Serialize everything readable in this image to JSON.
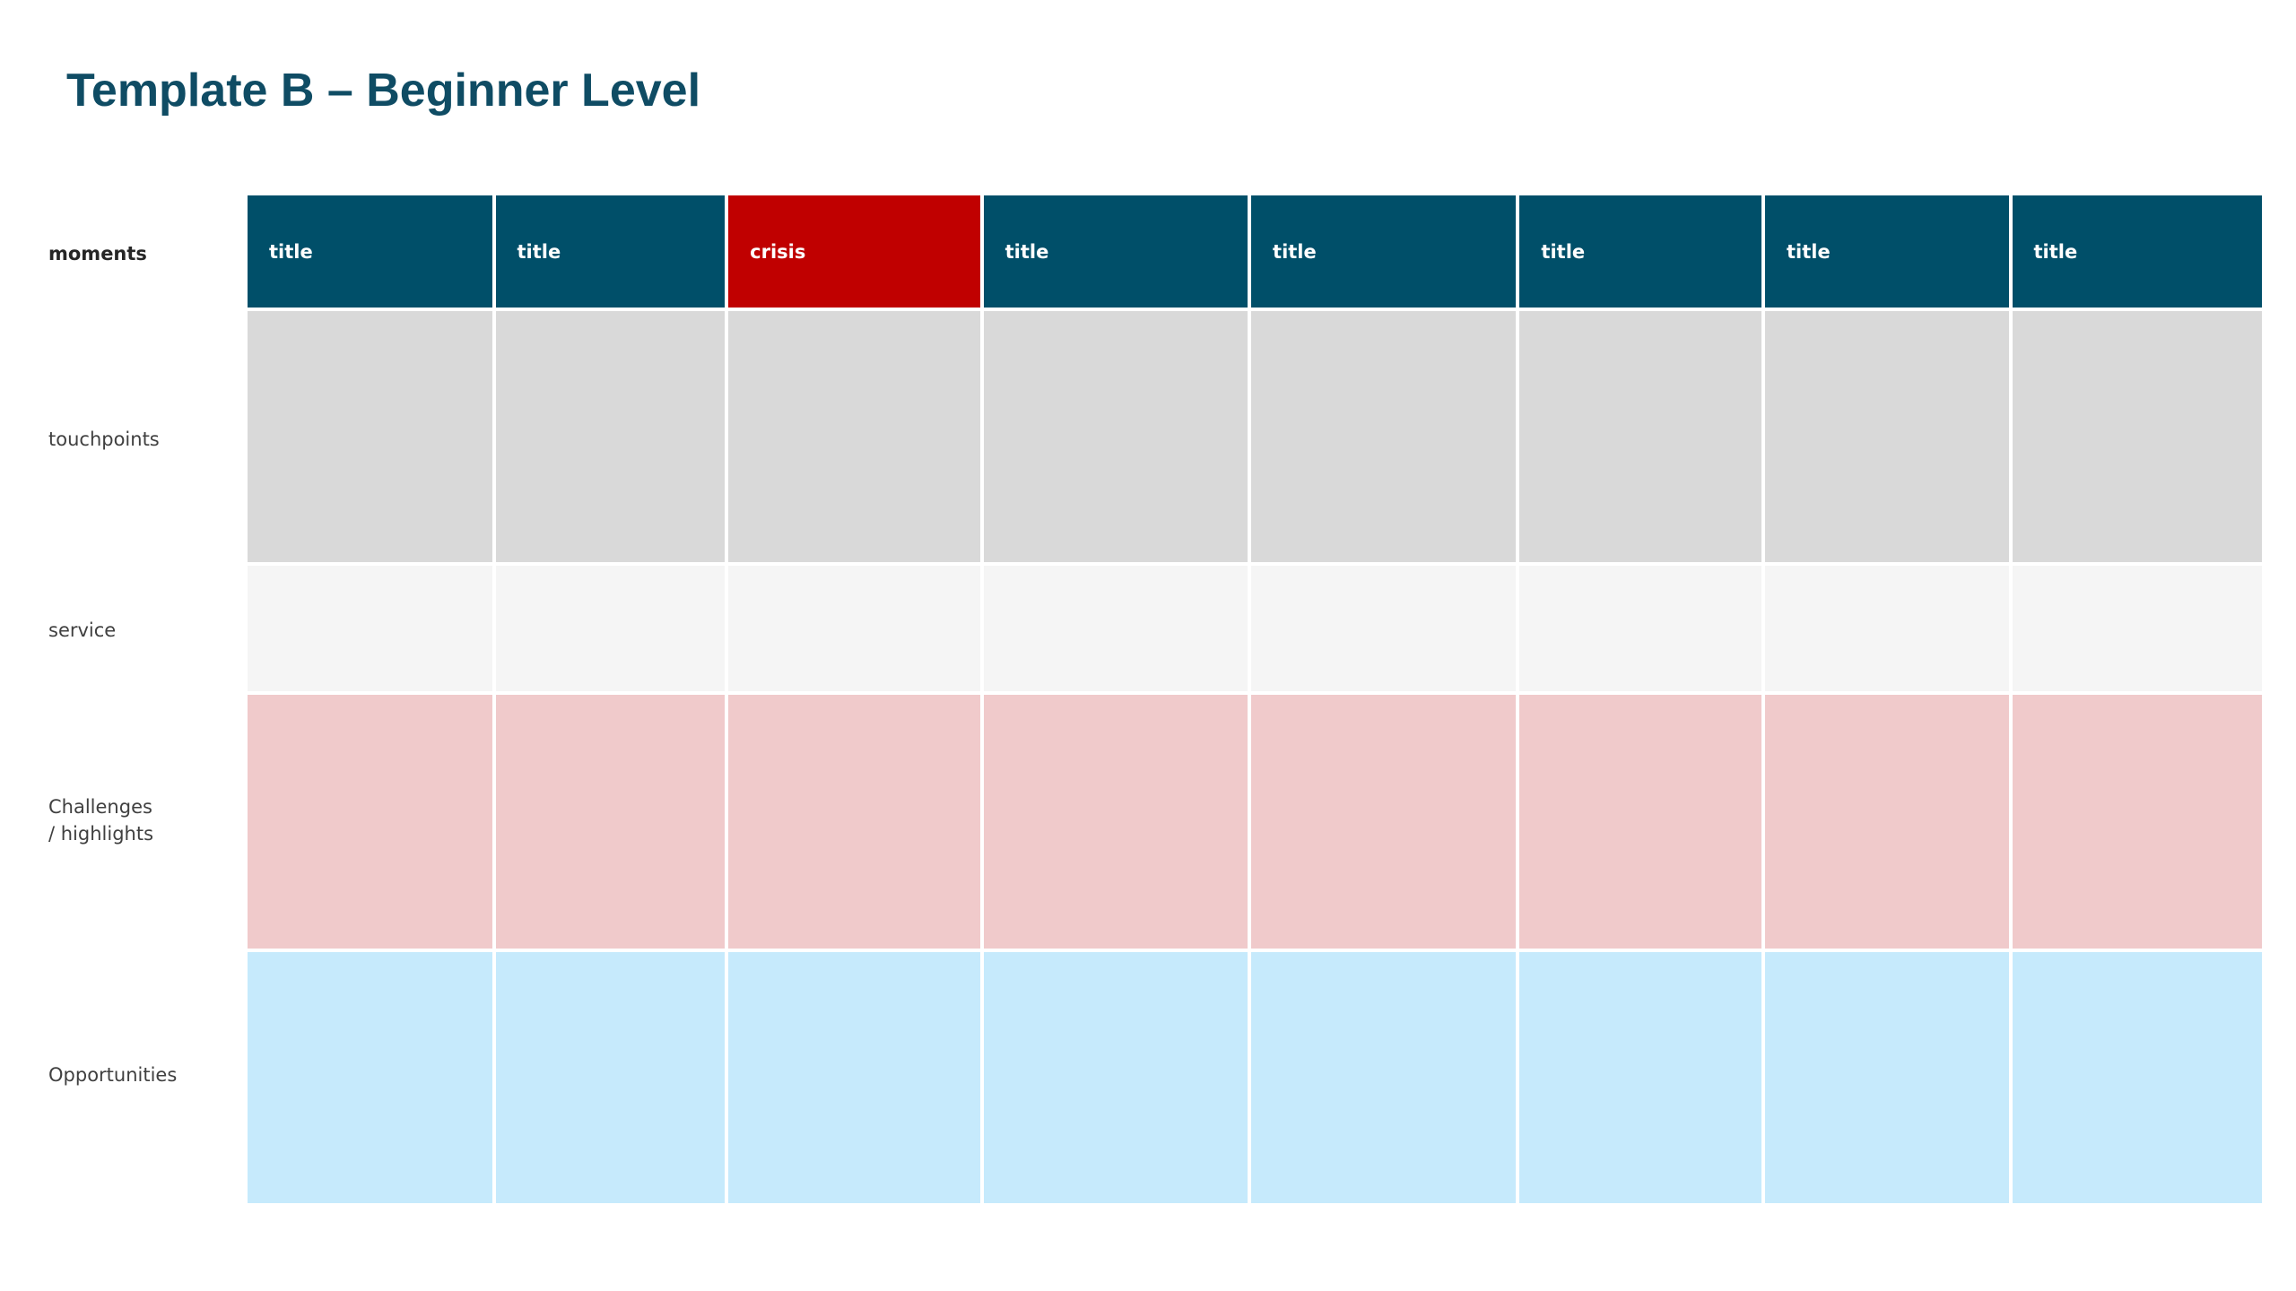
{
  "title": "Template B – Beginner Level",
  "row_labels": {
    "moments": "moments",
    "touchpoints": "touchpoints",
    "service": "service",
    "challenges_line1": "Challenges",
    "challenges_line2": "/ highlights",
    "opportunities": "Opportunities"
  },
  "moments": [
    "title",
    "title",
    "crisis",
    "title",
    "title",
    "title",
    "title",
    "title"
  ],
  "colors": {
    "title": "#0f4c64",
    "moment_header": "#004f69",
    "crisis_header": "#c00000",
    "touchpoints_row": "#d9d9d9",
    "service_row": "#f5f5f5",
    "challenges_row": "#f0cacb",
    "opportunities_row": "#c6eafc"
  }
}
